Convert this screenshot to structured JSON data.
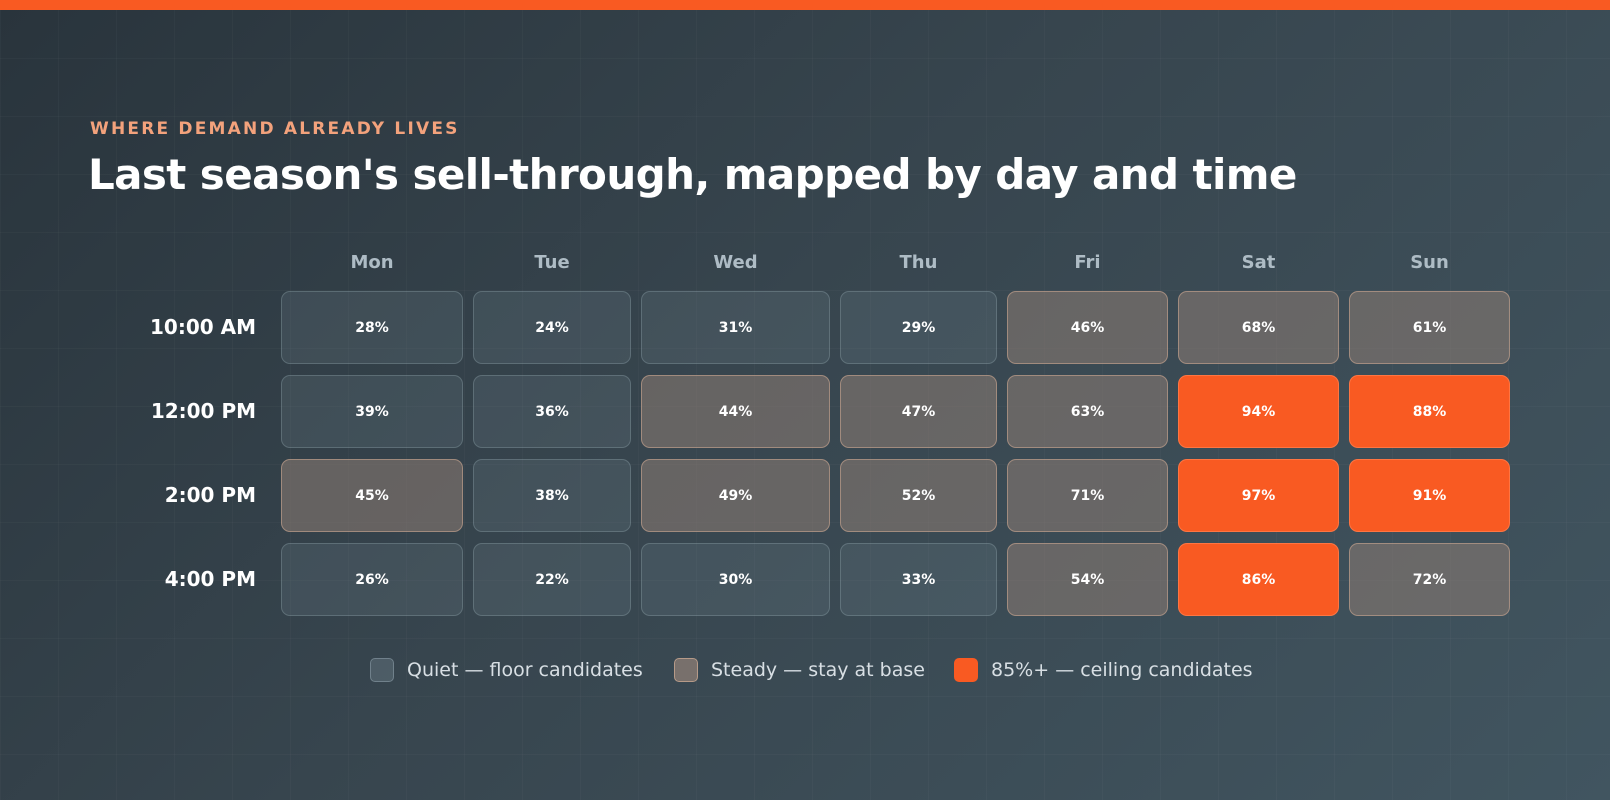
{
  "colors": {
    "accent": "#F95A22",
    "eyebrow": "#F3A27C",
    "quiet": "#4A5961",
    "steady": "#7A706B"
  },
  "header": {
    "eyebrow": "WHERE DEMAND ALREADY LIVES",
    "title": "Last season's sell-through, mapped by day and time"
  },
  "chart_data": {
    "type": "heatmap",
    "x_categories": [
      "Mon",
      "Tue",
      "Wed",
      "Thu",
      "Fri",
      "Sat",
      "Sun"
    ],
    "y_categories": [
      "10:00 AM",
      "12:00 PM",
      "2:00 PM",
      "4:00 PM"
    ],
    "value_suffix": "%",
    "values": [
      [
        28,
        24,
        31,
        29,
        46,
        68,
        61
      ],
      [
        39,
        36,
        44,
        47,
        63,
        94,
        88
      ],
      [
        45,
        38,
        49,
        52,
        71,
        97,
        91
      ],
      [
        26,
        22,
        30,
        33,
        54,
        86,
        72
      ]
    ],
    "legend": [
      {
        "key": "quiet",
        "label": "Quiet — floor candidates"
      },
      {
        "key": "steady",
        "label": "Steady — stay at base"
      },
      {
        "key": "peak",
        "label": "85%+ — ceiling candidates"
      }
    ]
  }
}
